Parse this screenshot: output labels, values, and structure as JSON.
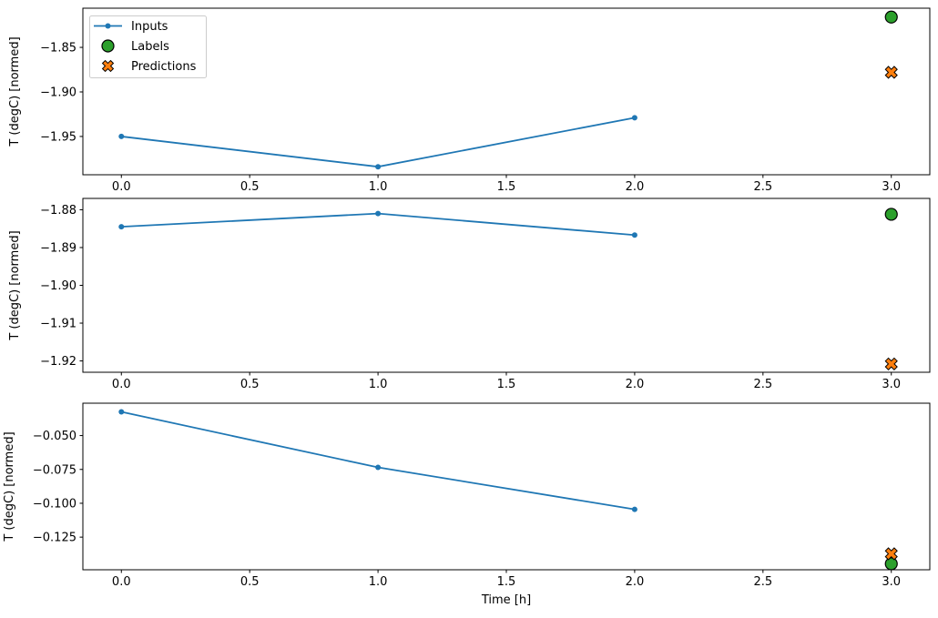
{
  "figure": {
    "background": "#ffffff",
    "xlabel": "Time [h]",
    "text_color": "#000000",
    "spine_color": "#000000",
    "legend": {
      "position": "upper-left",
      "border_color": "#cccccc",
      "entries": [
        {
          "label": "Inputs",
          "marker": "line-dot",
          "color": "#1f77b4",
          "edge": "#1f77b4"
        },
        {
          "label": "Labels",
          "marker": "circle",
          "color": "#2ca02c",
          "edge": "#000000"
        },
        {
          "label": "Predictions",
          "marker": "X",
          "color": "#ff7f0e",
          "edge": "#000000"
        }
      ]
    }
  },
  "chart_data": [
    {
      "type": "line",
      "ylabel": "T (degC) [normed]",
      "xlim": [
        -0.15,
        3.15
      ],
      "ylim": [
        -1.993,
        -1.806
      ],
      "grid": false,
      "xticks": [
        0.0,
        0.5,
        1.0,
        1.5,
        2.0,
        2.5,
        3.0
      ],
      "xtick_labels": [
        "0.0",
        "0.5",
        "1.0",
        "1.5",
        "2.0",
        "2.5",
        "3.0"
      ],
      "yticks": [
        -1.85,
        -1.9,
        -1.95
      ],
      "ytick_labels": [
        "−1.85",
        "−1.90",
        "−1.95"
      ],
      "series": [
        {
          "name": "Inputs",
          "marker": "line-dot",
          "color": "#1f77b4",
          "x": [
            0,
            1,
            2
          ],
          "y": [
            -1.95,
            -1.984,
            -1.929
          ]
        },
        {
          "name": "Labels",
          "marker": "circle",
          "color": "#2ca02c",
          "x": [
            3
          ],
          "y": [
            -1.816
          ]
        },
        {
          "name": "Predictions",
          "marker": "X",
          "color": "#ff7f0e",
          "x": [
            3
          ],
          "y": [
            -1.878
          ]
        }
      ]
    },
    {
      "type": "line",
      "ylabel": "T (degC) [normed]",
      "xlim": [
        -0.15,
        3.15
      ],
      "ylim": [
        -1.923,
        -1.877
      ],
      "grid": false,
      "xticks": [
        0.0,
        0.5,
        1.0,
        1.5,
        2.0,
        2.5,
        3.0
      ],
      "xtick_labels": [
        "0.0",
        "0.5",
        "1.0",
        "1.5",
        "2.0",
        "2.5",
        "3.0"
      ],
      "yticks": [
        -1.88,
        -1.89,
        -1.9,
        -1.91,
        -1.92
      ],
      "ytick_labels": [
        "−1.88",
        "−1.89",
        "−1.90",
        "−1.91",
        "−1.92"
      ],
      "series": [
        {
          "name": "Inputs",
          "marker": "line-dot",
          "color": "#1f77b4",
          "x": [
            0,
            1,
            2
          ],
          "y": [
            -1.8845,
            -1.881,
            -1.8867
          ]
        },
        {
          "name": "Labels",
          "marker": "circle",
          "color": "#2ca02c",
          "x": [
            3
          ],
          "y": [
            -1.8812
          ]
        },
        {
          "name": "Predictions",
          "marker": "X",
          "color": "#ff7f0e",
          "x": [
            3
          ],
          "y": [
            -1.9208
          ]
        }
      ]
    },
    {
      "type": "line",
      "ylabel": "T (degC) [normed]",
      "xlim": [
        -0.15,
        3.15
      ],
      "ylim": [
        -0.1491,
        -0.0261
      ],
      "grid": false,
      "xticks": [
        0.0,
        0.5,
        1.0,
        1.5,
        2.0,
        2.5,
        3.0
      ],
      "xtick_labels": [
        "0.0",
        "0.5",
        "1.0",
        "1.5",
        "2.0",
        "2.5",
        "3.0"
      ],
      "yticks": [
        -0.05,
        -0.075,
        -0.1,
        -0.125
      ],
      "ytick_labels": [
        "−0.050",
        "−0.075",
        "−0.100",
        "−0.125"
      ],
      "series": [
        {
          "name": "Inputs",
          "marker": "line-dot",
          "color": "#1f77b4",
          "x": [
            0,
            1,
            2
          ],
          "y": [
            -0.0325,
            -0.0735,
            -0.1045
          ]
        },
        {
          "name": "Labels",
          "marker": "circle",
          "color": "#2ca02c",
          "x": [
            3
          ],
          "y": [
            -0.1447
          ]
        },
        {
          "name": "Predictions",
          "marker": "X",
          "color": "#ff7f0e",
          "x": [
            3
          ],
          "y": [
            -0.1373
          ]
        }
      ]
    }
  ]
}
